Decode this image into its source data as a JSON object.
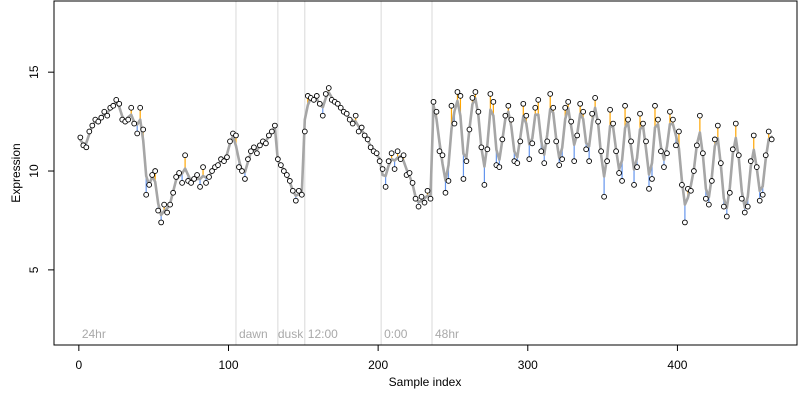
{
  "chart_data": {
    "type": "scatter",
    "title": "",
    "xlabel": "Sample index",
    "ylabel": "Expression",
    "xlim": [
      -16.6,
      479.9
    ],
    "ylim": [
      1.2,
      18.6
    ],
    "x_ticks": [
      0,
      100,
      200,
      300,
      400
    ],
    "y_ticks": [
      5,
      10,
      15
    ],
    "grid": false,
    "legend": "none",
    "colors": {
      "fit_line": "#a6a6a6",
      "residual_above": "#ffa500",
      "residual_below": "#6495ed",
      "point_fill": "#ffffff",
      "point_stroke": "#000000",
      "segment_line": "#d9d9d9",
      "segment_label": "#a9a9a9"
    },
    "segment_boundaries": [
      105,
      133,
      151,
      202,
      236
    ],
    "segment_labels": [
      {
        "x": 2,
        "text": "24hr"
      },
      {
        "x": 107,
        "text": "dawn"
      },
      {
        "x": 133,
        "text": "dusk"
      },
      {
        "x": 153,
        "text": "12:00"
      },
      {
        "x": 204,
        "text": "0:00"
      },
      {
        "x": 238,
        "text": "48hr"
      }
    ],
    "points": [
      [
        1,
        11.7
      ],
      [
        3,
        11.3
      ],
      [
        5,
        11.2
      ],
      [
        7,
        12.0
      ],
      [
        9,
        12.3
      ],
      [
        11,
        12.6
      ],
      [
        13,
        12.5
      ],
      [
        15,
        12.7
      ],
      [
        17,
        13.0
      ],
      [
        19,
        12.8
      ],
      [
        21,
        13.2
      ],
      [
        23,
        13.3
      ],
      [
        25,
        13.6
      ],
      [
        27,
        13.4
      ],
      [
        29,
        12.6
      ],
      [
        31,
        12.5
      ],
      [
        33,
        12.6
      ],
      [
        35,
        13.2
      ],
      [
        37,
        12.4
      ],
      [
        39,
        11.9
      ],
      [
        41,
        13.2
      ],
      [
        43,
        12.1
      ],
      [
        45,
        8.8
      ],
      [
        47,
        9.3
      ],
      [
        49,
        9.8
      ],
      [
        51,
        10.0
      ],
      [
        53,
        8.0
      ],
      [
        55,
        7.4
      ],
      [
        57,
        8.3
      ],
      [
        59,
        7.9
      ],
      [
        61,
        8.3
      ],
      [
        63,
        8.9
      ],
      [
        65,
        9.7
      ],
      [
        67,
        9.9
      ],
      [
        69,
        9.4
      ],
      [
        71,
        10.8
      ],
      [
        73,
        9.5
      ],
      [
        75,
        9.4
      ],
      [
        77,
        9.6
      ],
      [
        79,
        9.8
      ],
      [
        81,
        9.2
      ],
      [
        83,
        10.2
      ],
      [
        85,
        9.4
      ],
      [
        87,
        9.7
      ],
      [
        89,
        10.0
      ],
      [
        91,
        10.2
      ],
      [
        93,
        10.3
      ],
      [
        95,
        10.6
      ],
      [
        97,
        10.5
      ],
      [
        99,
        10.7
      ],
      [
        101,
        11.5
      ],
      [
        103,
        11.9
      ],
      [
        105,
        11.8
      ],
      [
        107,
        10.2
      ],
      [
        109,
        10.0
      ],
      [
        111,
        9.6
      ],
      [
        113,
        10.6
      ],
      [
        115,
        11.0
      ],
      [
        117,
        11.2
      ],
      [
        119,
        10.9
      ],
      [
        121,
        11.3
      ],
      [
        123,
        11.5
      ],
      [
        125,
        11.4
      ],
      [
        127,
        11.8
      ],
      [
        129,
        12.0
      ],
      [
        131,
        12.3
      ],
      [
        133,
        10.6
      ],
      [
        135,
        10.3
      ],
      [
        137,
        10.0
      ],
      [
        139,
        9.8
      ],
      [
        141,
        9.5
      ],
      [
        143,
        9.0
      ],
      [
        145,
        8.5
      ],
      [
        147,
        9.0
      ],
      [
        149,
        8.8
      ],
      [
        151,
        12.0
      ],
      [
        153,
        13.8
      ],
      [
        155,
        13.7
      ],
      [
        157,
        13.6
      ],
      [
        159,
        13.8
      ],
      [
        161,
        13.4
      ],
      [
        163,
        12.8
      ],
      [
        165,
        13.9
      ],
      [
        167,
        14.2
      ],
      [
        169,
        13.6
      ],
      [
        171,
        13.5
      ],
      [
        173,
        13.4
      ],
      [
        175,
        13.2
      ],
      [
        177,
        13.0
      ],
      [
        179,
        12.9
      ],
      [
        181,
        12.6
      ],
      [
        183,
        12.4
      ],
      [
        185,
        12.8
      ],
      [
        187,
        12.0
      ],
      [
        189,
        12.2
      ],
      [
        191,
        11.8
      ],
      [
        193,
        11.6
      ],
      [
        195,
        11.2
      ],
      [
        197,
        11.0
      ],
      [
        199,
        10.9
      ],
      [
        201,
        10.5
      ],
      [
        203,
        10.1
      ],
      [
        205,
        9.2
      ],
      [
        207,
        10.5
      ],
      [
        209,
        10.9
      ],
      [
        211,
        10.1
      ],
      [
        213,
        11.0
      ],
      [
        215,
        10.6
      ],
      [
        217,
        10.8
      ],
      [
        219,
        9.8
      ],
      [
        221,
        9.9
      ],
      [
        223,
        9.4
      ],
      [
        225,
        8.6
      ],
      [
        227,
        8.2
      ],
      [
        229,
        8.7
      ],
      [
        231,
        8.4
      ],
      [
        233,
        9.0
      ],
      [
        235,
        8.6
      ],
      [
        237,
        13.5
      ],
      [
        239,
        13.0
      ],
      [
        241,
        11.0
      ],
      [
        243,
        10.8
      ],
      [
        245,
        8.9
      ],
      [
        247,
        9.5
      ],
      [
        249,
        13.3
      ],
      [
        251,
        12.4
      ],
      [
        253,
        14.0
      ],
      [
        255,
        13.8
      ],
      [
        257,
        9.6
      ],
      [
        259,
        10.5
      ],
      [
        261,
        12.1
      ],
      [
        263,
        13.7
      ],
      [
        265,
        14.0
      ],
      [
        267,
        13.0
      ],
      [
        269,
        11.2
      ],
      [
        271,
        9.3
      ],
      [
        273,
        11.1
      ],
      [
        275,
        13.9
      ],
      [
        277,
        13.5
      ],
      [
        279,
        10.3
      ],
      [
        281,
        10.2
      ],
      [
        283,
        11.6
      ],
      [
        285,
        12.8
      ],
      [
        287,
        13.3
      ],
      [
        289,
        12.6
      ],
      [
        291,
        10.5
      ],
      [
        293,
        10.4
      ],
      [
        295,
        11.5
      ],
      [
        297,
        13.4
      ],
      [
        299,
        12.8
      ],
      [
        301,
        10.6
      ],
      [
        303,
        11.4
      ],
      [
        305,
        13.2
      ],
      [
        307,
        13.6
      ],
      [
        309,
        11.0
      ],
      [
        311,
        10.4
      ],
      [
        313,
        11.5
      ],
      [
        315,
        13.9
      ],
      [
        317,
        13.2
      ],
      [
        319,
        11.5
      ],
      [
        321,
        10.3
      ],
      [
        323,
        10.6
      ],
      [
        325,
        13.2
      ],
      [
        327,
        13.5
      ],
      [
        329,
        12.5
      ],
      [
        331,
        10.5
      ],
      [
        333,
        11.8
      ],
      [
        335,
        13.4
      ],
      [
        337,
        13.0
      ],
      [
        339,
        11.1
      ],
      [
        341,
        10.5
      ],
      [
        343,
        12.9
      ],
      [
        345,
        13.7
      ],
      [
        347,
        12.5
      ],
      [
        349,
        11.0
      ],
      [
        351,
        8.7
      ],
      [
        353,
        10.5
      ],
      [
        355,
        13.1
      ],
      [
        357,
        12.4
      ],
      [
        359,
        11.0
      ],
      [
        361,
        9.9
      ],
      [
        363,
        9.5
      ],
      [
        365,
        13.3
      ],
      [
        367,
        12.6
      ],
      [
        369,
        11.5
      ],
      [
        371,
        9.3
      ],
      [
        373,
        10.2
      ],
      [
        375,
        12.9
      ],
      [
        377,
        12.4
      ],
      [
        379,
        11.5
      ],
      [
        381,
        9.1
      ],
      [
        383,
        9.6
      ],
      [
        385,
        13.3
      ],
      [
        387,
        12.6
      ],
      [
        389,
        11.0
      ],
      [
        391,
        10.2
      ],
      [
        393,
        10.9
      ],
      [
        395,
        13.0
      ],
      [
        397,
        12.6
      ],
      [
        399,
        11.3
      ],
      [
        401,
        12.0
      ],
      [
        403,
        9.3
      ],
      [
        405,
        7.4
      ],
      [
        407,
        9.1
      ],
      [
        409,
        9.0
      ],
      [
        411,
        10.0
      ],
      [
        413,
        11.3
      ],
      [
        415,
        12.8
      ],
      [
        417,
        10.9
      ],
      [
        419,
        8.6
      ],
      [
        421,
        8.3
      ],
      [
        423,
        9.5
      ],
      [
        425,
        11.6
      ],
      [
        427,
        12.3
      ],
      [
        429,
        10.4
      ],
      [
        431,
        8.2
      ],
      [
        433,
        7.7
      ],
      [
        435,
        8.9
      ],
      [
        437,
        11.1
      ],
      [
        439,
        12.4
      ],
      [
        441,
        10.8
      ],
      [
        443,
        8.6
      ],
      [
        445,
        7.9
      ],
      [
        447,
        8.2
      ],
      [
        449,
        10.5
      ],
      [
        451,
        11.8
      ],
      [
        453,
        10.2
      ],
      [
        455,
        8.5
      ],
      [
        457,
        8.8
      ],
      [
        459,
        10.8
      ],
      [
        461,
        12.0
      ],
      [
        463,
        11.6
      ]
    ]
  }
}
